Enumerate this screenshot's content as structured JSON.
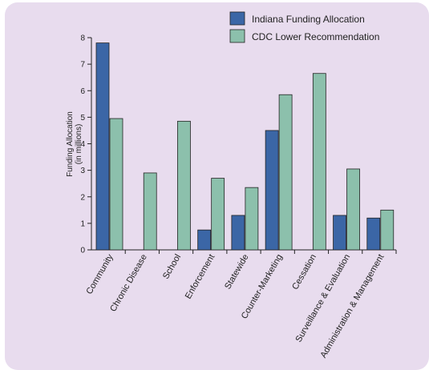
{
  "chart_data": {
    "type": "bar",
    "categories": [
      "Community",
      "Chronic Disease",
      "School",
      "Enforcement",
      "Statewide",
      "Counter-Marketing",
      "Cessation",
      "Surveillance & Evaluation",
      "Administration & Management"
    ],
    "series": [
      {
        "name": "Indiana Funding Allocation",
        "color": "#3b66a6",
        "values": [
          7.8,
          0,
          0,
          0.75,
          1.3,
          4.5,
          0,
          1.3,
          1.2
        ]
      },
      {
        "name": "CDC Lower Recommendation",
        "color": "#8cc0ac",
        "values": [
          4.95,
          2.9,
          4.85,
          2.7,
          2.35,
          5.85,
          6.65,
          3.05,
          1.5
        ]
      }
    ],
    "ylabel_line1": "Funding Allocation",
    "ylabel_line2": "(in millions)",
    "ylim": [
      0,
      8
    ],
    "yticks": [
      0,
      1,
      2,
      3,
      4,
      5,
      6,
      7,
      8
    ],
    "legend_position": "top-right",
    "grid": false
  }
}
